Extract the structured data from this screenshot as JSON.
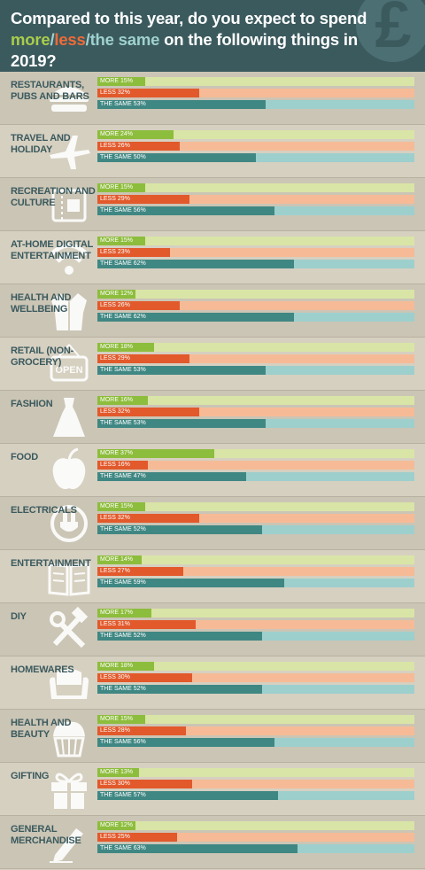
{
  "header": {
    "title_line1": "Compared to this year, do you expect to spend",
    "title_more": "more",
    "title_slash1": "/",
    "title_less": "less",
    "title_slash2": "/",
    "title_same": "the same",
    "title_rest": " on the following things in 2019?",
    "icon": "pound-sign-icon"
  },
  "colors": {
    "more": "#8dbd3c",
    "less": "#e2592b",
    "same": "#3f8783",
    "more_track": "#d9e5a6",
    "less_track": "#f6bb96",
    "same_track": "#9dcfcd",
    "header_bg": "#3b5a5e"
  },
  "chart_data": {
    "type": "bar",
    "orientation": "horizontal",
    "series_names": [
      "MORE",
      "LESS",
      "THE SAME"
    ],
    "xlim": [
      0,
      100
    ],
    "rows": [
      {
        "label": "RESTAURANTS, PUBS AND BARS",
        "icon": "burger-icon",
        "more": 15,
        "less": 32,
        "same": 53
      },
      {
        "label": "TRAVEL AND HOLIDAY",
        "icon": "airplane-icon",
        "more": 24,
        "less": 26,
        "same": 50
      },
      {
        "label": "RECREATION AND CULTURE",
        "icon": "ticket-icon",
        "more": 15,
        "less": 29,
        "same": 56
      },
      {
        "label": "AT-HOME DIGITAL ENTERTAINMENT",
        "icon": "wifi-icon",
        "more": 15,
        "less": 23,
        "same": 62
      },
      {
        "label": "HEALTH AND WELLBEING",
        "icon": "bathrobe-icon",
        "more": 12,
        "less": 26,
        "same": 62
      },
      {
        "label": "RETAIL (NON-GROCERY)",
        "icon": "open-sign-icon",
        "more": 18,
        "less": 29,
        "same": 53
      },
      {
        "label": "FASHION",
        "icon": "dress-icon",
        "more": 16,
        "less": 32,
        "same": 53
      },
      {
        "label": "FOOD",
        "icon": "apple-icon",
        "more": 37,
        "less": 16,
        "same": 47
      },
      {
        "label": "ELECTRICALS",
        "icon": "plug-icon",
        "more": 15,
        "less": 32,
        "same": 52
      },
      {
        "label": "ENTERTAINMENT",
        "icon": "book-icon",
        "more": 14,
        "less": 27,
        "same": 59
      },
      {
        "label": "DIY",
        "icon": "hammer-wrench-icon",
        "more": 17,
        "less": 31,
        "same": 52
      },
      {
        "label": "HOMEWARES",
        "icon": "armchair-icon",
        "more": 18,
        "less": 30,
        "same": 52
      },
      {
        "label": "HEALTH AND BEAUTY",
        "icon": "cupcake-icon",
        "more": 15,
        "less": 28,
        "same": 56
      },
      {
        "label": "GIFTING",
        "icon": "gift-icon",
        "more": 13,
        "less": 30,
        "same": 57
      },
      {
        "label": "GENERAL MERCHANDISE",
        "icon": "pencil-icon",
        "more": 12,
        "less": 25,
        "same": 63
      }
    ]
  }
}
